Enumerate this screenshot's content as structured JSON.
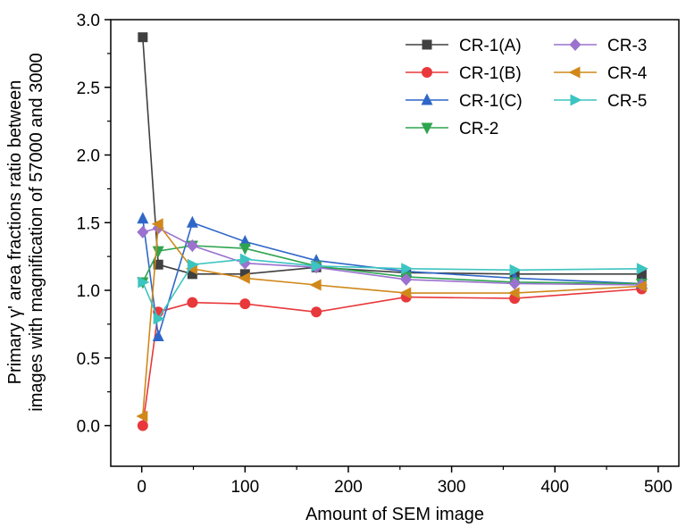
{
  "chart_data": {
    "type": "line",
    "xlabel": "Amount of SEM image",
    "ylabel_line1": "Primary γ' area fractions ratio between",
    "ylabel_line2": "images with magnification of 57000 and 3000",
    "xlim": [
      -30,
      520
    ],
    "ylim": [
      -0.3,
      3.0
    ],
    "xticks": [
      0,
      100,
      200,
      300,
      400,
      500
    ],
    "yticks": [
      0.0,
      0.5,
      1.0,
      1.5,
      2.0,
      2.5,
      3.0
    ],
    "xtick_labels": [
      "0",
      "100",
      "200",
      "300",
      "400",
      "500"
    ],
    "ytick_labels": [
      "0.0",
      "0.5",
      "1.0",
      "1.5",
      "2.0",
      "2.5",
      "3.0"
    ],
    "grid": false,
    "legend_position": "top-right",
    "series": [
      {
        "name": "CR-1(A)",
        "color": "#404040",
        "marker": "square",
        "x": [
          1,
          16,
          49,
          100,
          169,
          256,
          361,
          484
        ],
        "y": [
          2.87,
          1.19,
          1.12,
          1.12,
          1.17,
          1.13,
          1.12,
          1.12
        ]
      },
      {
        "name": "CR-1(B)",
        "color": "#e8383b",
        "marker": "circle",
        "x": [
          1,
          16,
          49,
          100,
          169,
          256,
          361,
          484
        ],
        "y": [
          0.0,
          0.84,
          0.91,
          0.9,
          0.84,
          0.95,
          0.94,
          1.01
        ]
      },
      {
        "name": "CR-1(C)",
        "color": "#2f67c8",
        "marker": "triangle-up",
        "x": [
          1,
          16,
          49,
          100,
          169,
          256,
          361,
          484
        ],
        "y": [
          1.53,
          0.66,
          1.5,
          1.36,
          1.22,
          1.14,
          1.09,
          1.05
        ]
      },
      {
        "name": "CR-2",
        "color": "#2ea44f",
        "marker": "triangle-down",
        "x": [
          1,
          16,
          49,
          100,
          169,
          256,
          361,
          484
        ],
        "y": [
          1.06,
          1.29,
          1.33,
          1.31,
          1.18,
          1.1,
          1.06,
          1.05
        ]
      },
      {
        "name": "CR-3",
        "color": "#9b72cf",
        "marker": "diamond",
        "x": [
          1,
          16,
          49,
          100,
          169,
          256,
          361,
          484
        ],
        "y": [
          1.43,
          1.46,
          1.33,
          1.2,
          1.17,
          1.08,
          1.05,
          1.04
        ]
      },
      {
        "name": "CR-4",
        "color": "#d0881a",
        "marker": "triangle-left",
        "x": [
          1,
          16,
          49,
          100,
          169,
          256,
          361,
          484
        ],
        "y": [
          0.07,
          1.49,
          1.16,
          1.09,
          1.04,
          0.98,
          0.98,
          1.03
        ]
      },
      {
        "name": "CR-5",
        "color": "#3cc4c0",
        "marker": "triangle-right",
        "x": [
          1,
          16,
          49,
          100,
          169,
          256,
          361,
          484
        ],
        "y": [
          1.06,
          0.79,
          1.19,
          1.23,
          1.18,
          1.16,
          1.15,
          1.16
        ]
      }
    ]
  }
}
